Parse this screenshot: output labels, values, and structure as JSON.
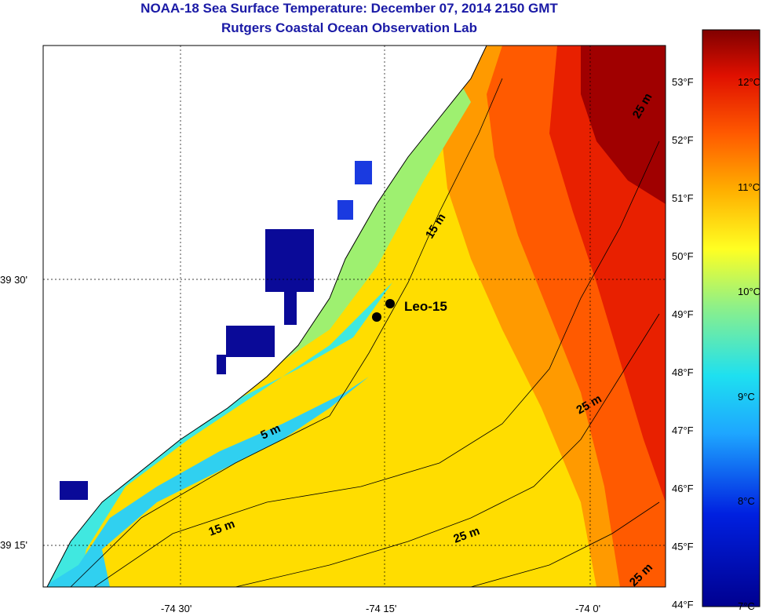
{
  "title": "NOAA-18 Sea Surface Temperature:  December 07, 2014 2150 GMT",
  "subtitle": "Rutgers Coastal Ocean Observation Lab",
  "station": {
    "label": "Leo-15"
  },
  "lon_labels": [
    "-74 30'",
    "-74 15'",
    "-74 0'"
  ],
  "lat_labels": [
    "39 30'",
    "39 15'"
  ],
  "depth_labels": [
    "15 m",
    "5 m",
    "15 m",
    "25 m",
    "25 m",
    "25 m",
    "25 m"
  ],
  "colorbar": {
    "fahrenheit": [
      "53°F",
      "52°F",
      "51°F",
      "50°F",
      "49°F",
      "48°F",
      "47°F",
      "46°F",
      "45°F",
      "44°F"
    ],
    "celsius": [
      "12°C",
      "11°C",
      "10°C",
      "9°C",
      "8°C",
      "7°C"
    ],
    "range_c": [
      7,
      12.7
    ]
  },
  "colors": {
    "land": "#ffffff",
    "title": "#1a1aa6",
    "station": "#000000"
  }
}
